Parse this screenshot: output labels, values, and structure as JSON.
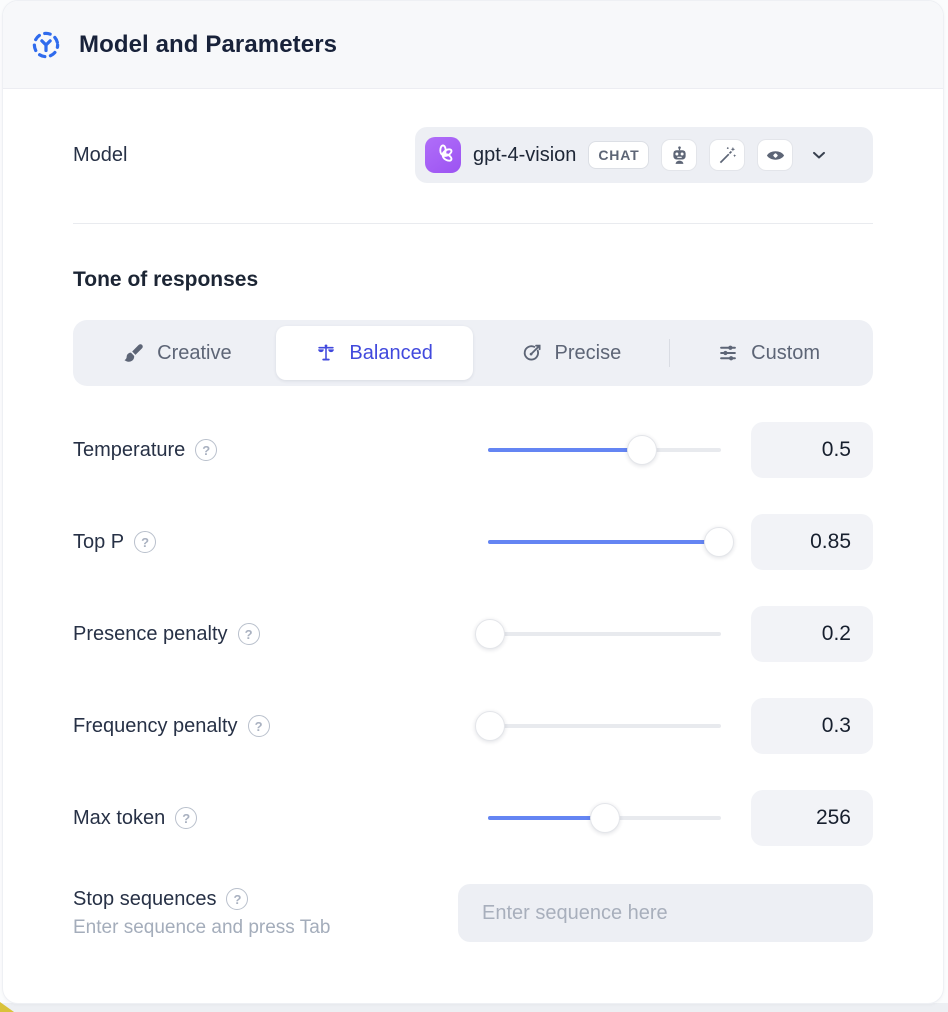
{
  "header": {
    "title": "Model and Parameters"
  },
  "model_row": {
    "label": "Model",
    "model_name": "gpt-4-vision",
    "chat_badge": "CHAT",
    "capability_icons": [
      "robot-icon",
      "magic-wand-icon",
      "vision-eye-icon"
    ]
  },
  "tone": {
    "heading": "Tone of responses",
    "options": [
      {
        "label": "Creative",
        "icon": "paintbrush-icon",
        "selected": false
      },
      {
        "label": "Balanced",
        "icon": "balance-scale-icon",
        "selected": true
      },
      {
        "label": "Precise",
        "icon": "target-arrow-icon",
        "selected": false
      },
      {
        "label": "Custom",
        "icon": "sliders-icon",
        "selected": false
      }
    ]
  },
  "parameters": [
    {
      "label": "Temperature",
      "value": "0.5",
      "fill_pct": 66
    },
    {
      "label": "Top P",
      "value": "0.85",
      "fill_pct": 99
    },
    {
      "label": "Presence penalty",
      "value": "0.2",
      "fill_pct": 1
    },
    {
      "label": "Frequency penalty",
      "value": "0.3",
      "fill_pct": 1
    },
    {
      "label": "Max token",
      "value": "256",
      "fill_pct": 50
    }
  ],
  "stop_sequences": {
    "label": "Stop sequences",
    "hint": "Enter sequence and press Tab",
    "placeholder": "Enter sequence here"
  },
  "colors": {
    "accent_blue_slider": "#6485f3",
    "selected_indigo": "#4149dd",
    "header_icon_blue": "#2f6bed",
    "logo_purple": "#a661f6",
    "badge_slate": "#5d6576",
    "bottom_accent_yellow": "#d9c23a"
  }
}
